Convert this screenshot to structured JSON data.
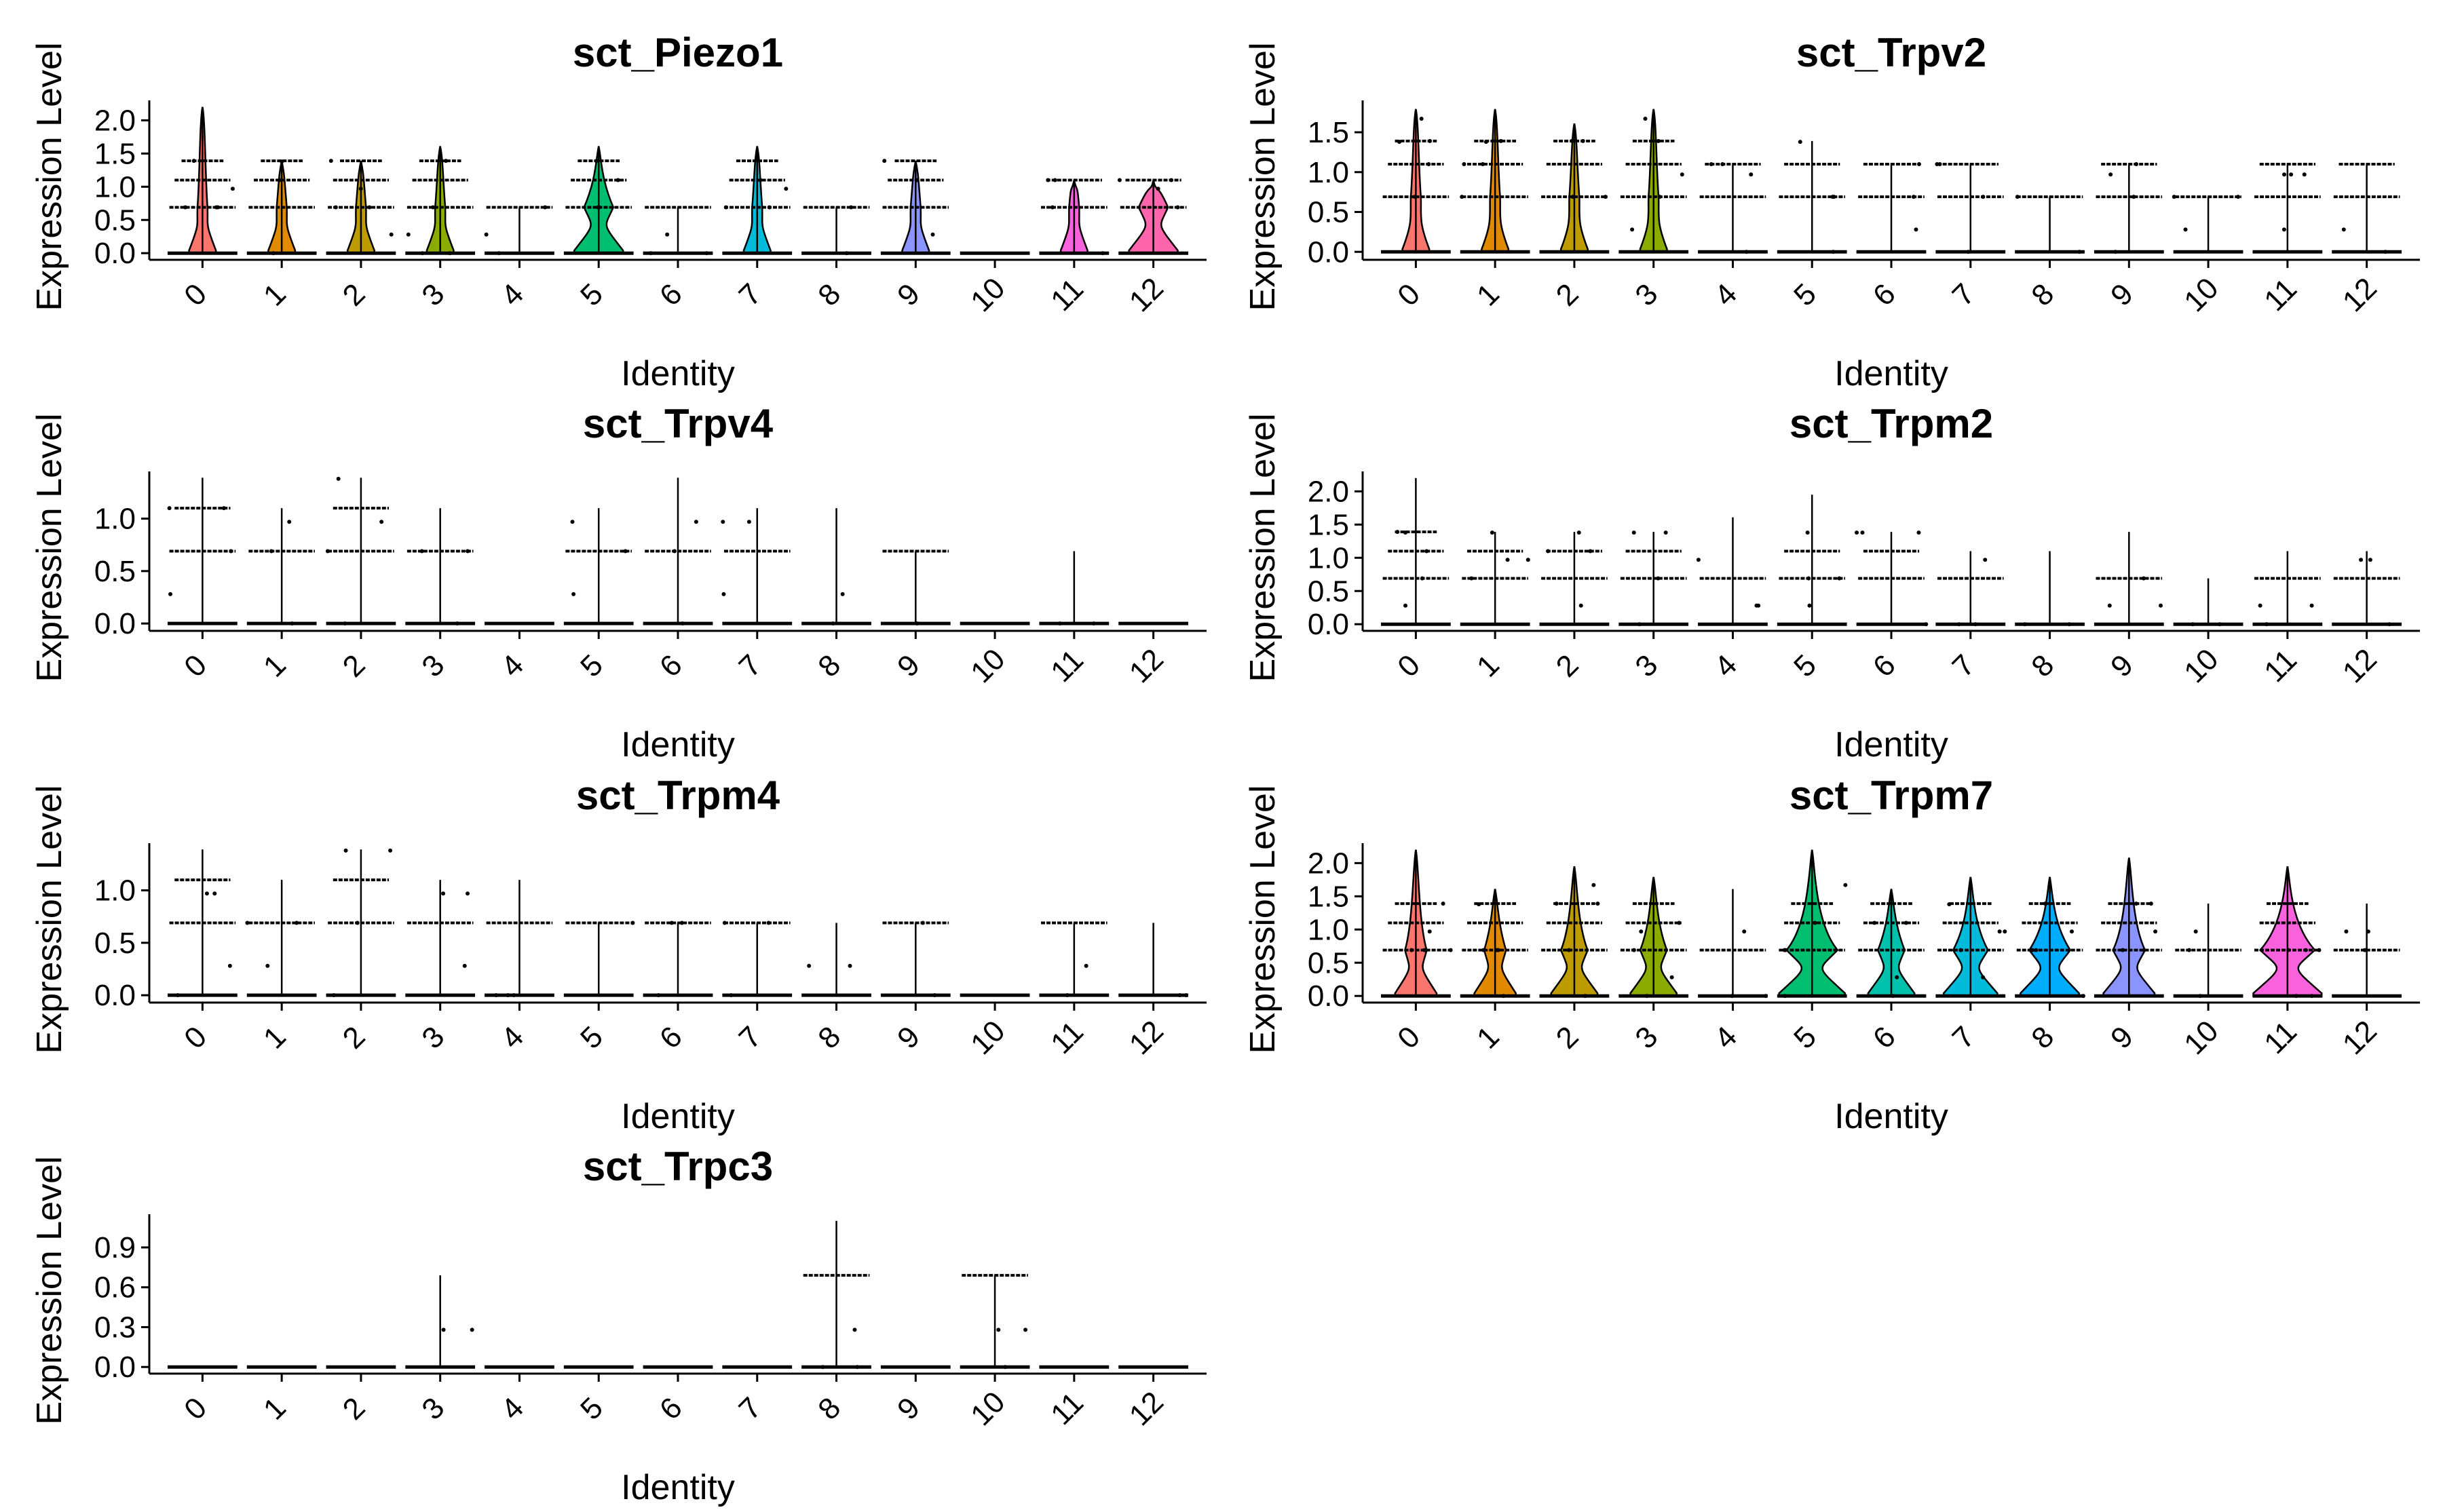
{
  "chart_data": [
    {
      "type": "violin",
      "title": "sct_Piezo1",
      "xlabel": "Identity",
      "ylabel": "Expression Level",
      "categories": [
        "0",
        "1",
        "2",
        "3",
        "4",
        "5",
        "6",
        "7",
        "8",
        "9",
        "10",
        "11",
        "12"
      ],
      "ylim": [
        -0.1,
        2.3
      ],
      "yticks": [
        "0.0",
        "0.5",
        "1.0",
        "1.5",
        "2.0"
      ],
      "ytick_values": [
        0.0,
        0.5,
        1.0,
        1.5,
        2.0
      ],
      "series": [
        {
          "levels": [
            0.0,
            0.69,
            1.1,
            1.39
          ],
          "max": 2.2,
          "fill_level": 0.05
        },
        {
          "levels": [
            0.0,
            0.69,
            1.1,
            1.39
          ],
          "max": 1.39,
          "fill_level": 0.05
        },
        {
          "levels": [
            0.0,
            0.69,
            1.1,
            1.39
          ],
          "max": 1.39,
          "fill_level": 0.05
        },
        {
          "levels": [
            0.0,
            0.69,
            1.1,
            1.39
          ],
          "max": 1.61,
          "fill_level": 0.05
        },
        {
          "levels": [
            0.0,
            0.69
          ],
          "max": 0.69,
          "fill_level": 0.0
        },
        {
          "levels": [
            0.0,
            0.69,
            1.1,
            1.39
          ],
          "max": 1.61,
          "fill_level": 0.5
        },
        {
          "levels": [
            0.0,
            0.69
          ],
          "max": 0.69,
          "fill_level": 0.0
        },
        {
          "levels": [
            0.0,
            0.69,
            1.1,
            1.39
          ],
          "max": 1.61,
          "fill_level": 0.05
        },
        {
          "levels": [
            0.0,
            0.69
          ],
          "max": 0.69,
          "fill_level": 0.0
        },
        {
          "levels": [
            0.0,
            0.69,
            1.1,
            1.39
          ],
          "max": 1.39,
          "fill_level": 0.05
        },
        {
          "levels": [
            0.0
          ],
          "max": 0.0,
          "fill_level": 0.0
        },
        {
          "levels": [
            0.0,
            0.69,
            1.1
          ],
          "max": 1.1,
          "fill_level": 0.05
        },
        {
          "levels": [
            0.0,
            0.69,
            1.1
          ],
          "max": 1.1,
          "fill_level": 0.5
        }
      ]
    },
    {
      "type": "violin",
      "title": "sct_Trpv2",
      "xlabel": "Identity",
      "ylabel": "Expression Level",
      "categories": [
        "0",
        "1",
        "2",
        "3",
        "4",
        "5",
        "6",
        "7",
        "8",
        "9",
        "10",
        "11",
        "12"
      ],
      "ylim": [
        -0.1,
        1.9
      ],
      "yticks": [
        "0.0",
        "0.5",
        "1.0",
        "1.5"
      ],
      "ytick_values": [
        0.0,
        0.5,
        1.0,
        1.5
      ],
      "series": [
        {
          "levels": [
            0.0,
            0.69,
            1.1,
            1.39
          ],
          "max": 1.79,
          "fill_level": 0.05
        },
        {
          "levels": [
            0.0,
            0.69,
            1.1,
            1.39
          ],
          "max": 1.79,
          "fill_level": 0.05
        },
        {
          "levels": [
            0.0,
            0.69,
            1.1,
            1.39
          ],
          "max": 1.61,
          "fill_level": 0.05
        },
        {
          "levels": [
            0.0,
            0.69,
            1.1,
            1.39
          ],
          "max": 1.79,
          "fill_level": 0.05
        },
        {
          "levels": [
            0.0,
            0.69,
            1.1
          ],
          "max": 1.1,
          "fill_level": 0.0
        },
        {
          "levels": [
            0.0,
            0.69,
            1.1
          ],
          "max": 1.39,
          "fill_level": 0.0
        },
        {
          "levels": [
            0.0,
            0.69,
            1.1
          ],
          "max": 1.1,
          "fill_level": 0.0
        },
        {
          "levels": [
            0.0,
            0.69,
            1.1
          ],
          "max": 1.1,
          "fill_level": 0.0
        },
        {
          "levels": [
            0.0,
            0.69
          ],
          "max": 0.69,
          "fill_level": 0.0
        },
        {
          "levels": [
            0.0,
            0.69,
            1.1
          ],
          "max": 1.1,
          "fill_level": 0.0
        },
        {
          "levels": [
            0.0,
            0.69
          ],
          "max": 0.69,
          "fill_level": 0.0
        },
        {
          "levels": [
            0.0,
            0.69,
            1.1
          ],
          "max": 1.1,
          "fill_level": 0.0
        },
        {
          "levels": [
            0.0,
            0.69,
            1.1
          ],
          "max": 1.1,
          "fill_level": 0.0
        }
      ]
    },
    {
      "type": "violin",
      "title": "sct_Trpv4",
      "xlabel": "Identity",
      "ylabel": "Expression Level",
      "categories": [
        "0",
        "1",
        "2",
        "3",
        "4",
        "5",
        "6",
        "7",
        "8",
        "9",
        "10",
        "11",
        "12"
      ],
      "ylim": [
        -0.07,
        1.45
      ],
      "yticks": [
        "0.0",
        "0.5",
        "1.0"
      ],
      "ytick_values": [
        0.0,
        0.5,
        1.0
      ],
      "series": [
        {
          "levels": [
            0.0,
            0.69,
            1.1
          ],
          "max": 1.39,
          "fill_level": 0.0
        },
        {
          "levels": [
            0.0,
            0.69
          ],
          "max": 1.1,
          "fill_level": 0.0
        },
        {
          "levels": [
            0.0,
            0.69,
            1.1
          ],
          "max": 1.39,
          "fill_level": 0.0
        },
        {
          "levels": [
            0.0,
            0.69
          ],
          "max": 1.1,
          "fill_level": 0.0
        },
        {
          "levels": [
            0.0
          ],
          "max": 0.0,
          "fill_level": 0.0
        },
        {
          "levels": [
            0.0,
            0.69
          ],
          "max": 1.1,
          "fill_level": 0.0
        },
        {
          "levels": [
            0.0,
            0.69
          ],
          "max": 1.39,
          "fill_level": 0.0
        },
        {
          "levels": [
            0.0,
            0.69
          ],
          "max": 1.1,
          "fill_level": 0.0
        },
        {
          "levels": [
            0.0
          ],
          "max": 1.1,
          "fill_level": 0.0
        },
        {
          "levels": [
            0.0,
            0.69
          ],
          "max": 0.69,
          "fill_level": 0.0
        },
        {
          "levels": [
            0.0
          ],
          "max": 0.0,
          "fill_level": 0.0
        },
        {
          "levels": [
            0.0
          ],
          "max": 0.69,
          "fill_level": 0.0
        },
        {
          "levels": [
            0.0
          ],
          "max": 0.0,
          "fill_level": 0.0
        }
      ]
    },
    {
      "type": "violin",
      "title": "sct_Trpm2",
      "xlabel": "Identity",
      "ylabel": "Expression Level",
      "categories": [
        "0",
        "1",
        "2",
        "3",
        "4",
        "5",
        "6",
        "7",
        "8",
        "9",
        "10",
        "11",
        "12"
      ],
      "ylim": [
        -0.1,
        2.3
      ],
      "yticks": [
        "0.0",
        "0.5",
        "1.0",
        "1.5",
        "2.0"
      ],
      "ytick_values": [
        0.0,
        0.5,
        1.0,
        1.5,
        2.0
      ],
      "series": [
        {
          "levels": [
            0.0,
            0.69,
            1.1,
            1.39
          ],
          "max": 2.2,
          "fill_level": 0.0
        },
        {
          "levels": [
            0.0,
            0.69,
            1.1
          ],
          "max": 1.39,
          "fill_level": 0.0
        },
        {
          "levels": [
            0.0,
            0.69,
            1.1
          ],
          "max": 1.39,
          "fill_level": 0.0
        },
        {
          "levels": [
            0.0,
            0.69,
            1.1
          ],
          "max": 1.39,
          "fill_level": 0.0
        },
        {
          "levels": [
            0.0,
            0.69
          ],
          "max": 1.61,
          "fill_level": 0.0
        },
        {
          "levels": [
            0.0,
            0.69,
            1.1
          ],
          "max": 1.95,
          "fill_level": 0.0
        },
        {
          "levels": [
            0.0,
            0.69,
            1.1
          ],
          "max": 1.39,
          "fill_level": 0.0
        },
        {
          "levels": [
            0.0,
            0.69
          ],
          "max": 1.1,
          "fill_level": 0.0
        },
        {
          "levels": [
            0.0
          ],
          "max": 1.1,
          "fill_level": 0.0
        },
        {
          "levels": [
            0.0,
            0.69
          ],
          "max": 1.39,
          "fill_level": 0.0
        },
        {
          "levels": [
            0.0
          ],
          "max": 0.69,
          "fill_level": 0.0
        },
        {
          "levels": [
            0.0,
            0.69
          ],
          "max": 1.1,
          "fill_level": 0.0
        },
        {
          "levels": [
            0.0,
            0.69
          ],
          "max": 1.1,
          "fill_level": 0.0
        }
      ]
    },
    {
      "type": "violin",
      "title": "sct_Trpm4",
      "xlabel": "Identity",
      "ylabel": "Expression Level",
      "categories": [
        "0",
        "1",
        "2",
        "3",
        "4",
        "5",
        "6",
        "7",
        "8",
        "9",
        "10",
        "11",
        "12"
      ],
      "ylim": [
        -0.07,
        1.45
      ],
      "yticks": [
        "0.0",
        "0.5",
        "1.0"
      ],
      "ytick_values": [
        0.0,
        0.5,
        1.0
      ],
      "series": [
        {
          "levels": [
            0.0,
            0.69,
            1.1
          ],
          "max": 1.39,
          "fill_level": 0.0
        },
        {
          "levels": [
            0.0,
            0.69
          ],
          "max": 1.1,
          "fill_level": 0.0
        },
        {
          "levels": [
            0.0,
            0.69,
            1.1
          ],
          "max": 1.39,
          "fill_level": 0.0
        },
        {
          "levels": [
            0.0,
            0.69
          ],
          "max": 1.1,
          "fill_level": 0.0
        },
        {
          "levels": [
            0.0,
            0.69
          ],
          "max": 1.1,
          "fill_level": 0.0
        },
        {
          "levels": [
            0.0,
            0.69
          ],
          "max": 0.69,
          "fill_level": 0.0
        },
        {
          "levels": [
            0.0,
            0.69
          ],
          "max": 0.69,
          "fill_level": 0.0
        },
        {
          "levels": [
            0.0,
            0.69
          ],
          "max": 0.69,
          "fill_level": 0.0
        },
        {
          "levels": [
            0.0
          ],
          "max": 0.69,
          "fill_level": 0.0
        },
        {
          "levels": [
            0.0,
            0.69
          ],
          "max": 0.69,
          "fill_level": 0.0
        },
        {
          "levels": [
            0.0
          ],
          "max": 0.0,
          "fill_level": 0.0
        },
        {
          "levels": [
            0.0,
            0.69
          ],
          "max": 0.69,
          "fill_level": 0.0
        },
        {
          "levels": [
            0.0
          ],
          "max": 0.69,
          "fill_level": 0.0
        }
      ]
    },
    {
      "type": "violin",
      "title": "sct_Trpm7",
      "xlabel": "Identity",
      "ylabel": "Expression Level",
      "categories": [
        "0",
        "1",
        "2",
        "3",
        "4",
        "5",
        "6",
        "7",
        "8",
        "9",
        "10",
        "11",
        "12"
      ],
      "ylim": [
        -0.1,
        2.3
      ],
      "yticks": [
        "0.0",
        "0.5",
        "1.0",
        "1.5",
        "2.0"
      ],
      "ytick_values": [
        0.0,
        0.5,
        1.0,
        1.5,
        2.0
      ],
      "series": [
        {
          "levels": [
            0.0,
            0.69,
            1.1,
            1.39
          ],
          "max": 2.2,
          "fill_level": 0.35
        },
        {
          "levels": [
            0.0,
            0.69,
            1.1,
            1.39
          ],
          "max": 1.61,
          "fill_level": 0.35
        },
        {
          "levels": [
            0.0,
            0.69,
            1.1,
            1.39
          ],
          "max": 1.95,
          "fill_level": 0.45
        },
        {
          "levels": [
            0.0,
            0.69,
            1.1,
            1.39
          ],
          "max": 1.79,
          "fill_level": 0.45
        },
        {
          "levels": [
            0.0,
            0.69
          ],
          "max": 1.61,
          "fill_level": 0.0
        },
        {
          "levels": [
            0.0,
            0.69,
            1.1,
            1.39
          ],
          "max": 2.2,
          "fill_level": 0.85
        },
        {
          "levels": [
            0.0,
            0.69,
            1.1,
            1.39
          ],
          "max": 1.61,
          "fill_level": 0.45
        },
        {
          "levels": [
            0.0,
            0.69,
            1.1,
            1.39
          ],
          "max": 1.79,
          "fill_level": 0.6
        },
        {
          "levels": [
            0.0,
            0.69,
            1.1,
            1.39
          ],
          "max": 1.79,
          "fill_level": 0.7
        },
        {
          "levels": [
            0.0,
            0.69,
            1.1,
            1.39
          ],
          "max": 2.08,
          "fill_level": 0.55
        },
        {
          "levels": [
            0.0,
            0.69
          ],
          "max": 1.39,
          "fill_level": 0.0
        },
        {
          "levels": [
            0.0,
            0.69,
            1.1,
            1.39
          ],
          "max": 1.95,
          "fill_level": 0.9
        },
        {
          "levels": [
            0.0,
            0.69
          ],
          "max": 1.39,
          "fill_level": 0.0
        }
      ]
    },
    {
      "type": "violin",
      "title": "sct_Trpc3",
      "xlabel": "Identity",
      "ylabel": "Expression Level",
      "categories": [
        "0",
        "1",
        "2",
        "3",
        "4",
        "5",
        "6",
        "7",
        "8",
        "9",
        "10",
        "11",
        "12"
      ],
      "ylim": [
        -0.05,
        1.15
      ],
      "yticks": [
        "0.0",
        "0.3",
        "0.6",
        "0.9"
      ],
      "ytick_values": [
        0.0,
        0.3,
        0.6,
        0.9
      ],
      "series": [
        {
          "levels": [
            0.0
          ],
          "max": 0.0,
          "fill_level": 0.0
        },
        {
          "levels": [
            0.0
          ],
          "max": 0.0,
          "fill_level": 0.0
        },
        {
          "levels": [
            0.0
          ],
          "max": 0.0,
          "fill_level": 0.0
        },
        {
          "levels": [
            0.0
          ],
          "max": 0.69,
          "fill_level": 0.0
        },
        {
          "levels": [
            0.0
          ],
          "max": 0.0,
          "fill_level": 0.0
        },
        {
          "levels": [
            0.0
          ],
          "max": 0.0,
          "fill_level": 0.0
        },
        {
          "levels": [
            0.0
          ],
          "max": 0.0,
          "fill_level": 0.0
        },
        {
          "levels": [
            0.0
          ],
          "max": 0.0,
          "fill_level": 0.0
        },
        {
          "levels": [
            0.0,
            0.69
          ],
          "max": 1.1,
          "fill_level": 0.0
        },
        {
          "levels": [
            0.0
          ],
          "max": 0.0,
          "fill_level": 0.0
        },
        {
          "levels": [
            0.0,
            0.69
          ],
          "max": 0.69,
          "fill_level": 0.0
        },
        {
          "levels": [
            0.0
          ],
          "max": 0.0,
          "fill_level": 0.0
        },
        {
          "levels": [
            0.0
          ],
          "max": 0.0,
          "fill_level": 0.0
        }
      ]
    }
  ],
  "colors": {
    "palette": [
      "#F8766D",
      "#E18A00",
      "#BE9C00",
      "#8CAB00",
      "#24B700",
      "#00BE70",
      "#00C1AB",
      "#00BBDA",
      "#00ACFC",
      "#8B93FF",
      "#D575FE",
      "#F962DD",
      "#FF65AC"
    ],
    "axis": "#000000",
    "background": "#ffffff"
  }
}
